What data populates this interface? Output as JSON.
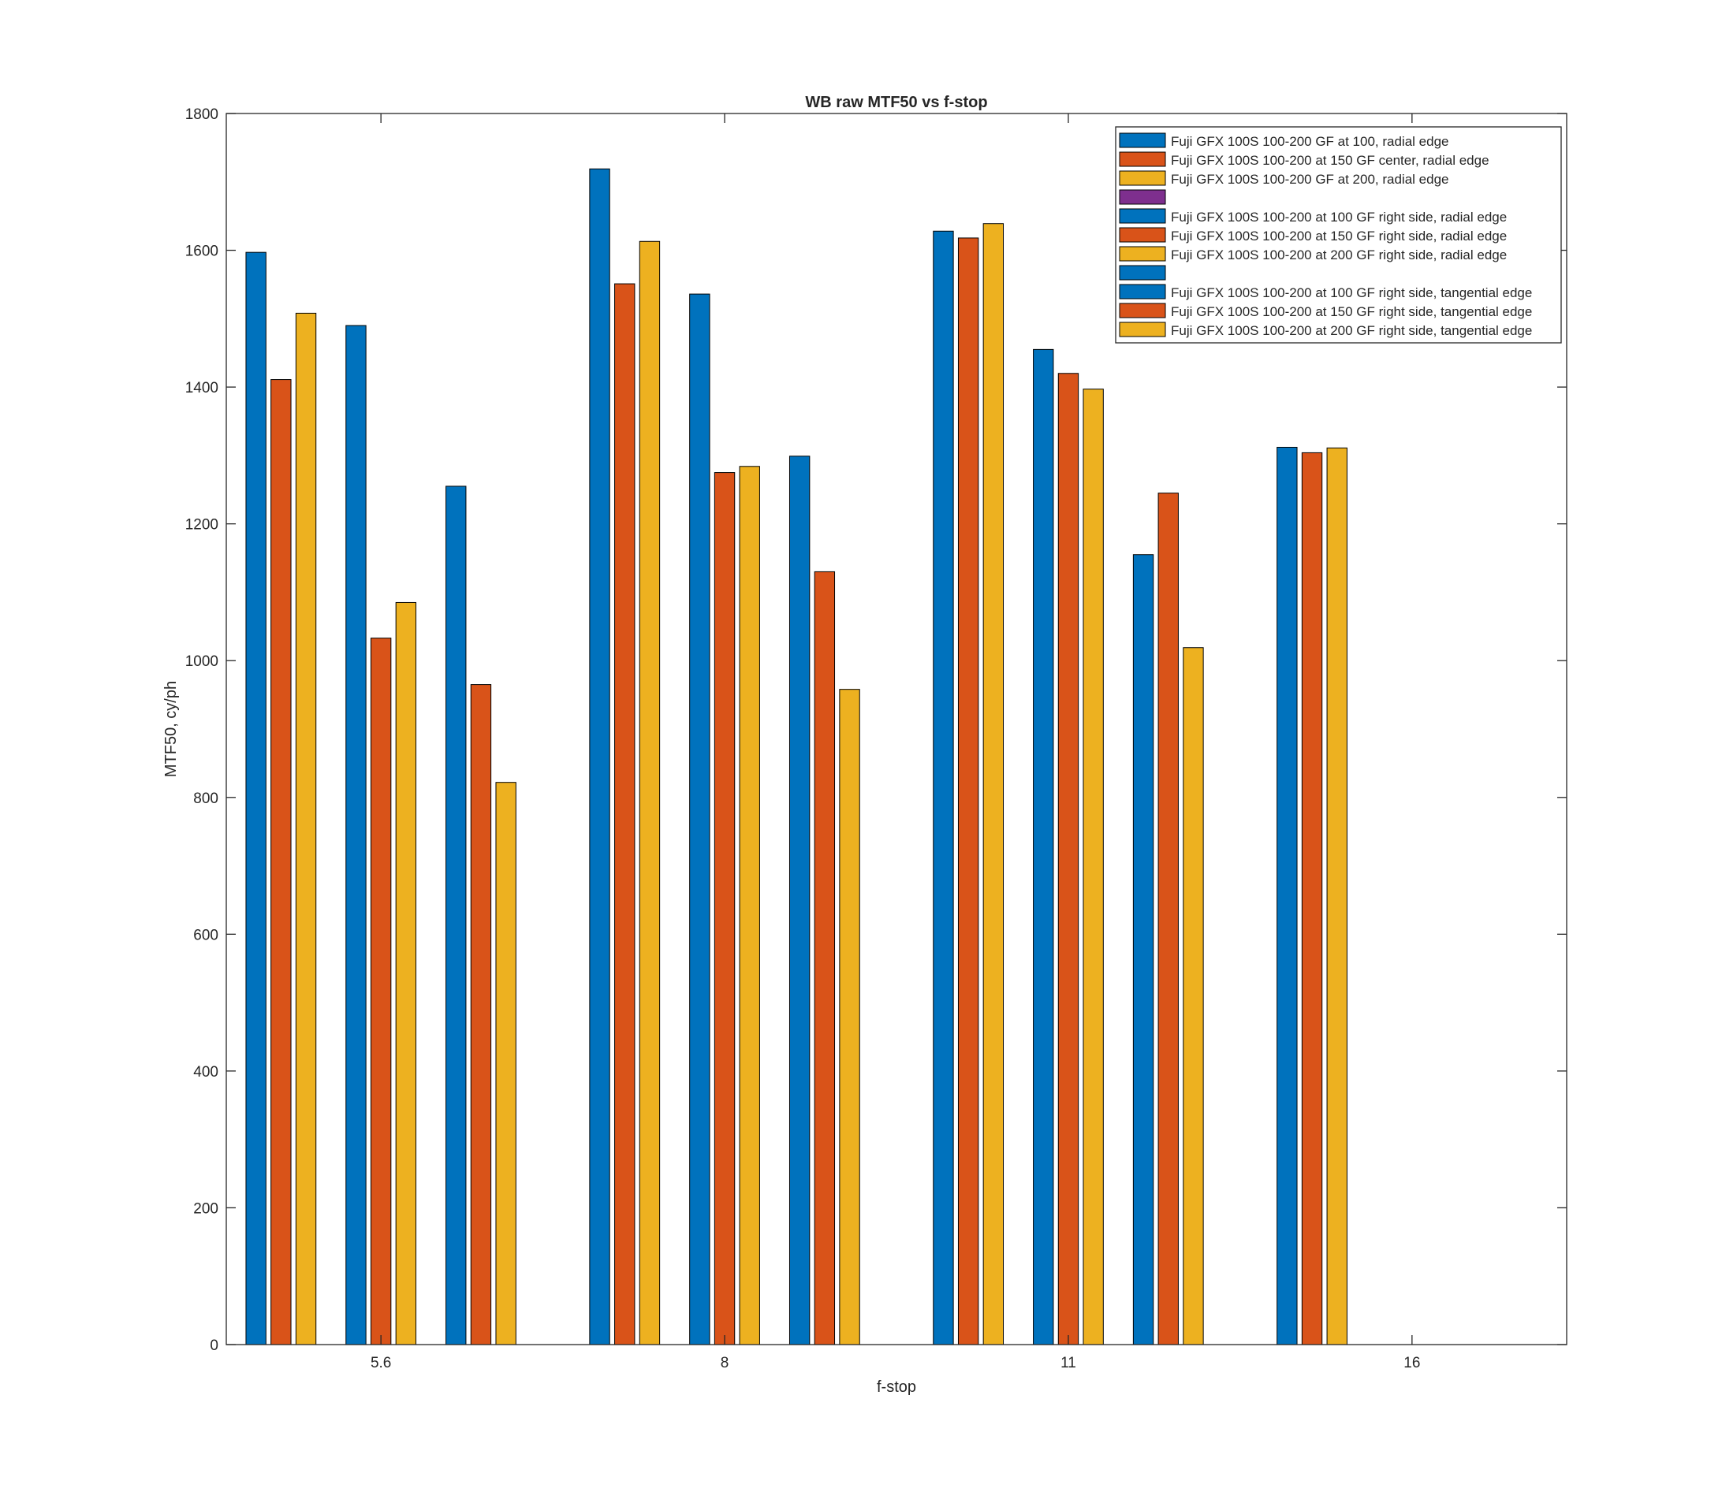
{
  "chart_data": {
    "type": "bar",
    "title": "WB raw MTF50 vs f-stop",
    "xlabel": "f-stop",
    "ylabel": "MTF50, cy/ph",
    "ylim": [
      0,
      1800
    ],
    "yticks": [
      0,
      200,
      400,
      600,
      800,
      1000,
      1200,
      1400,
      1600,
      1800
    ],
    "grid": false,
    "legend_position": "top-right",
    "categories": [
      "5.6",
      "8",
      "11",
      "16"
    ],
    "colors": {
      "blue": "#0072BD",
      "orange": "#D95319",
      "yellow": "#EDB120",
      "purple": "#7E2F8E"
    },
    "series": [
      {
        "name": "Fuji GFX 100S 100-200 GF at 100, radial edge",
        "color": "#0072BD",
        "values": [
          1597,
          1719,
          1628,
          1312
        ]
      },
      {
        "name": "Fuji GFX 100S 100-200 at 150 GF center, radial edge",
        "color": "#D95319",
        "values": [
          1411,
          1551,
          1618,
          1304
        ]
      },
      {
        "name": "Fuji GFX 100S 100-200 GF at 200, radial edge",
        "color": "#EDB120",
        "values": [
          1508,
          1613,
          1639,
          1311
        ]
      },
      {
        "name": "",
        "color": "#7E2F8E",
        "values": [
          0,
          0,
          0,
          0
        ]
      },
      {
        "name": "Fuji GFX 100S 100-200 at 100 GF right side, radial edge",
        "color": "#0072BD",
        "values": [
          1490,
          1536,
          1455,
          0
        ]
      },
      {
        "name": "Fuji GFX 100S 100-200 at 150 GF right side, radial edge",
        "color": "#D95319",
        "values": [
          1033,
          1275,
          1420,
          0
        ]
      },
      {
        "name": "Fuji GFX 100S 100-200 at 200 GF right side, radial edge",
        "color": "#EDB120",
        "values": [
          1085,
          1284,
          1397,
          0
        ]
      },
      {
        "name": "",
        "color": "#0072BD",
        "values": [
          0,
          0,
          0,
          0
        ]
      },
      {
        "name": "Fuji GFX 100S 100-200 at 100 GF right side, tangential edge",
        "color": "#0072BD",
        "values": [
          1255,
          1299,
          1155,
          0
        ]
      },
      {
        "name": "Fuji GFX 100S 100-200 at 150 GF right side, tangential edge",
        "color": "#D95319",
        "values": [
          965,
          1130,
          1245,
          0
        ]
      },
      {
        "name": "Fuji GFX 100S 100-200 at 200 GF right side, tangential edge",
        "color": "#EDB120",
        "values": [
          822,
          958,
          1019,
          0
        ]
      }
    ]
  }
}
